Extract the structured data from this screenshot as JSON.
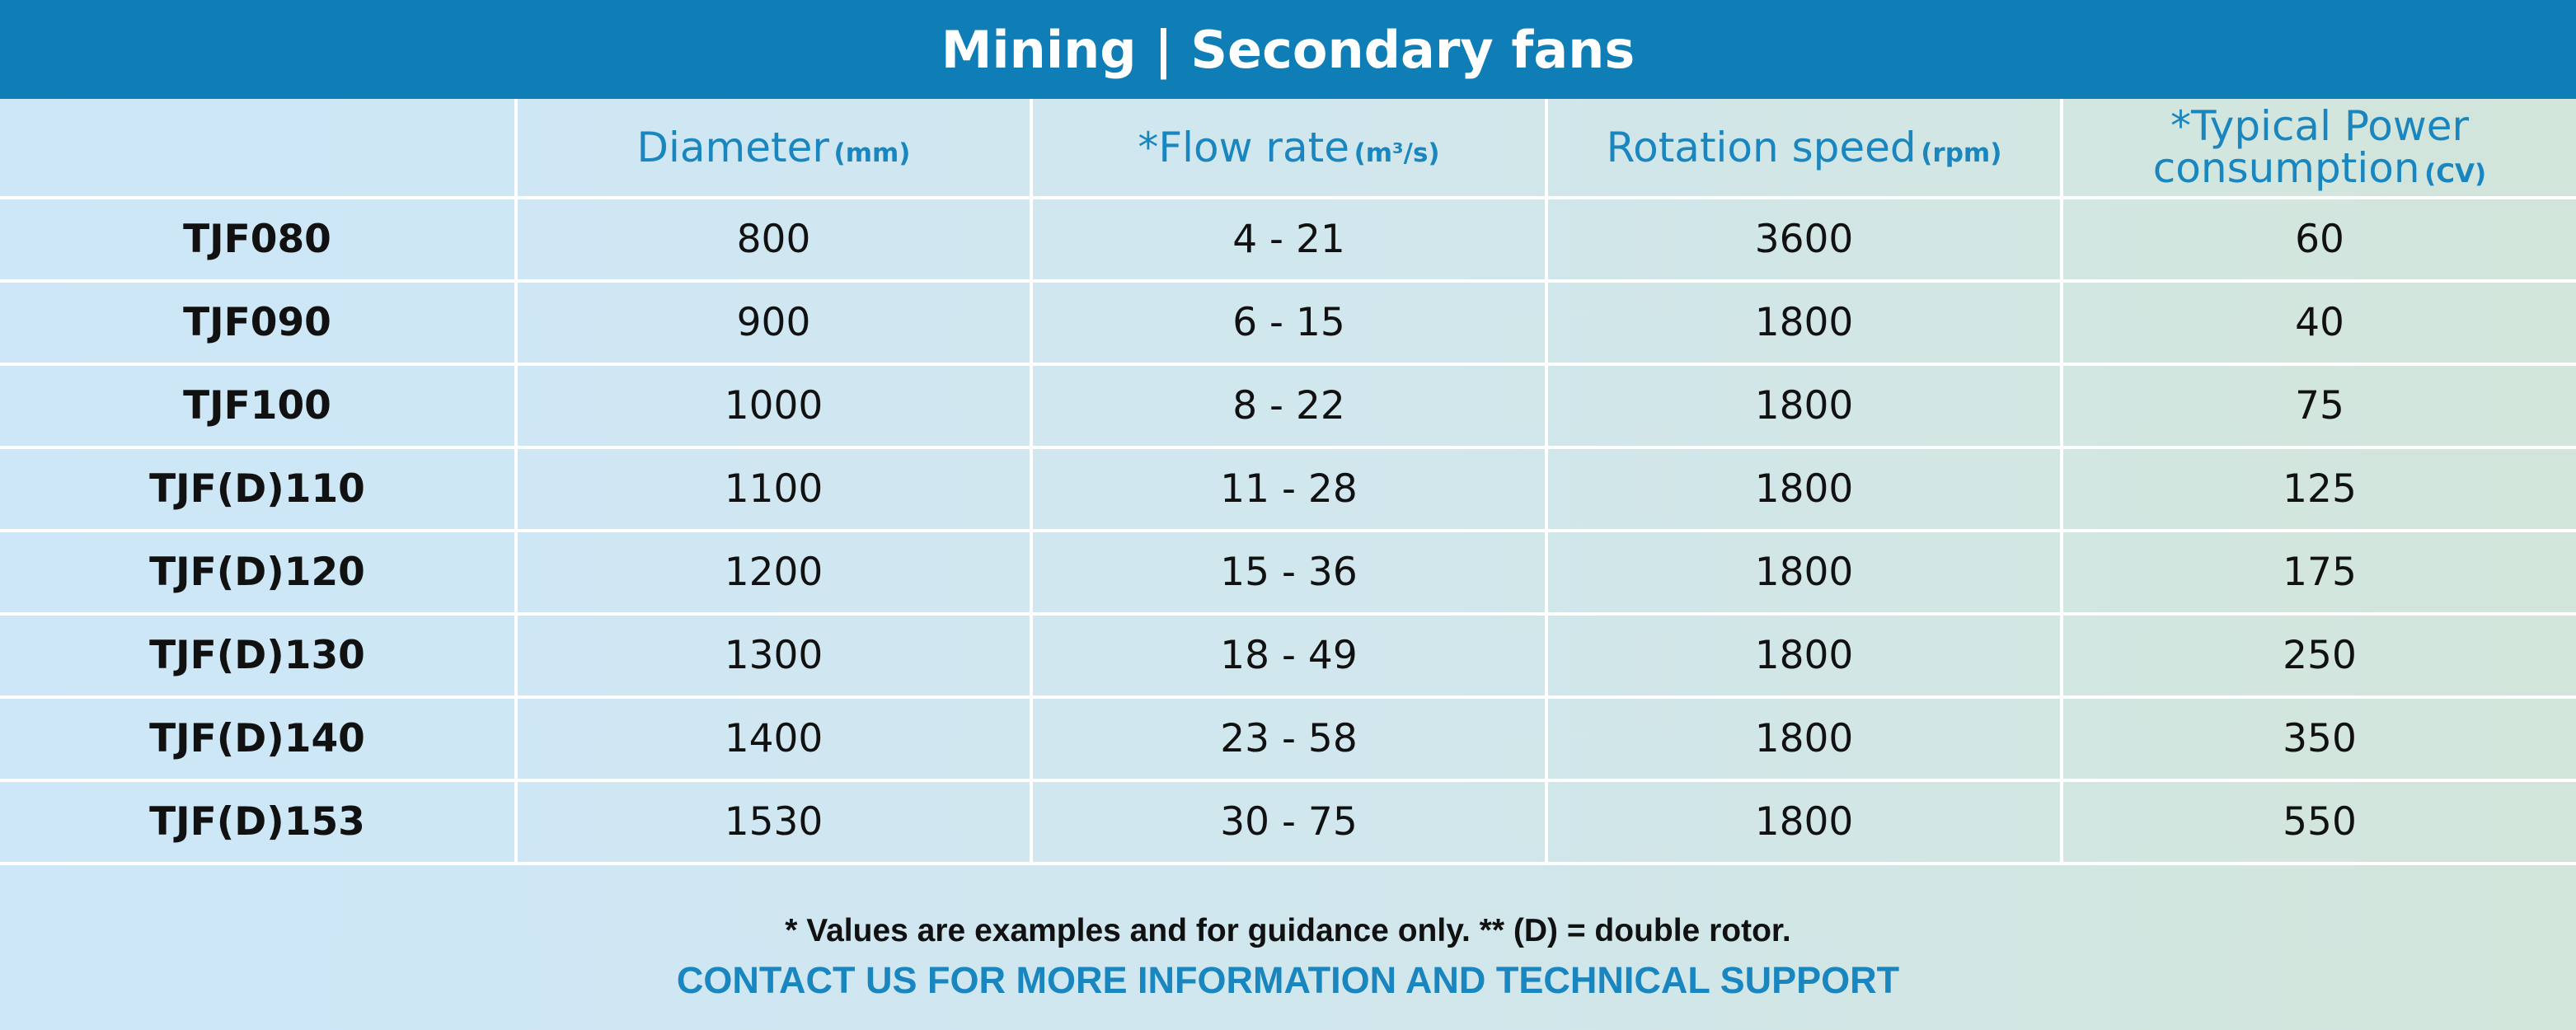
{
  "title": "Mining | Secondary fans",
  "columns": [
    {
      "label": "",
      "unit": ""
    },
    {
      "label": "Diameter",
      "unit": "(mm)"
    },
    {
      "label": "*Flow rate",
      "unit": "(m³/s)"
    },
    {
      "label": "Rotation speed",
      "unit": "(rpm)"
    },
    {
      "label": "*Typical Power consumption",
      "unit": "(CV)"
    }
  ],
  "header": {
    "power_line1": "*Typical Power",
    "power_line2": "consumption"
  },
  "rows": [
    {
      "model": "TJF080",
      "diameter": "800",
      "flow": "4 - 21",
      "speed": "3600",
      "power": "60"
    },
    {
      "model": "TJF090",
      "diameter": "900",
      "flow": "6 - 15",
      "speed": "1800",
      "power": "40"
    },
    {
      "model": "TJF100",
      "diameter": "1000",
      "flow": "8 - 22",
      "speed": "1800",
      "power": "75"
    },
    {
      "model": "TJF(D)110",
      "diameter": "1100",
      "flow": "11 - 28",
      "speed": "1800",
      "power": "125"
    },
    {
      "model": "TJF(D)120",
      "diameter": "1200",
      "flow": "15 - 36",
      "speed": "1800",
      "power": "175"
    },
    {
      "model": "TJF(D)130",
      "diameter": "1300",
      "flow": "18 - 49",
      "speed": "1800",
      "power": "250"
    },
    {
      "model": "TJF(D)140",
      "diameter": "1400",
      "flow": "23 - 58",
      "speed": "1800",
      "power": "350"
    },
    {
      "model": "TJF(D)153",
      "diameter": "1530",
      "flow": "30 - 75",
      "speed": "1800",
      "power": "550"
    }
  ],
  "footer": {
    "note": "* Values are examples and for guidance only. ** (D) = double rotor.",
    "contact": "CONTACT US FOR MORE INFORMATION AND TECHNICAL SUPPORT"
  },
  "colors": {
    "title_bar": "#0f7db6",
    "accent_text": "#1a86bf",
    "body_text": "#111111",
    "grid_lines": "#ffffff"
  }
}
